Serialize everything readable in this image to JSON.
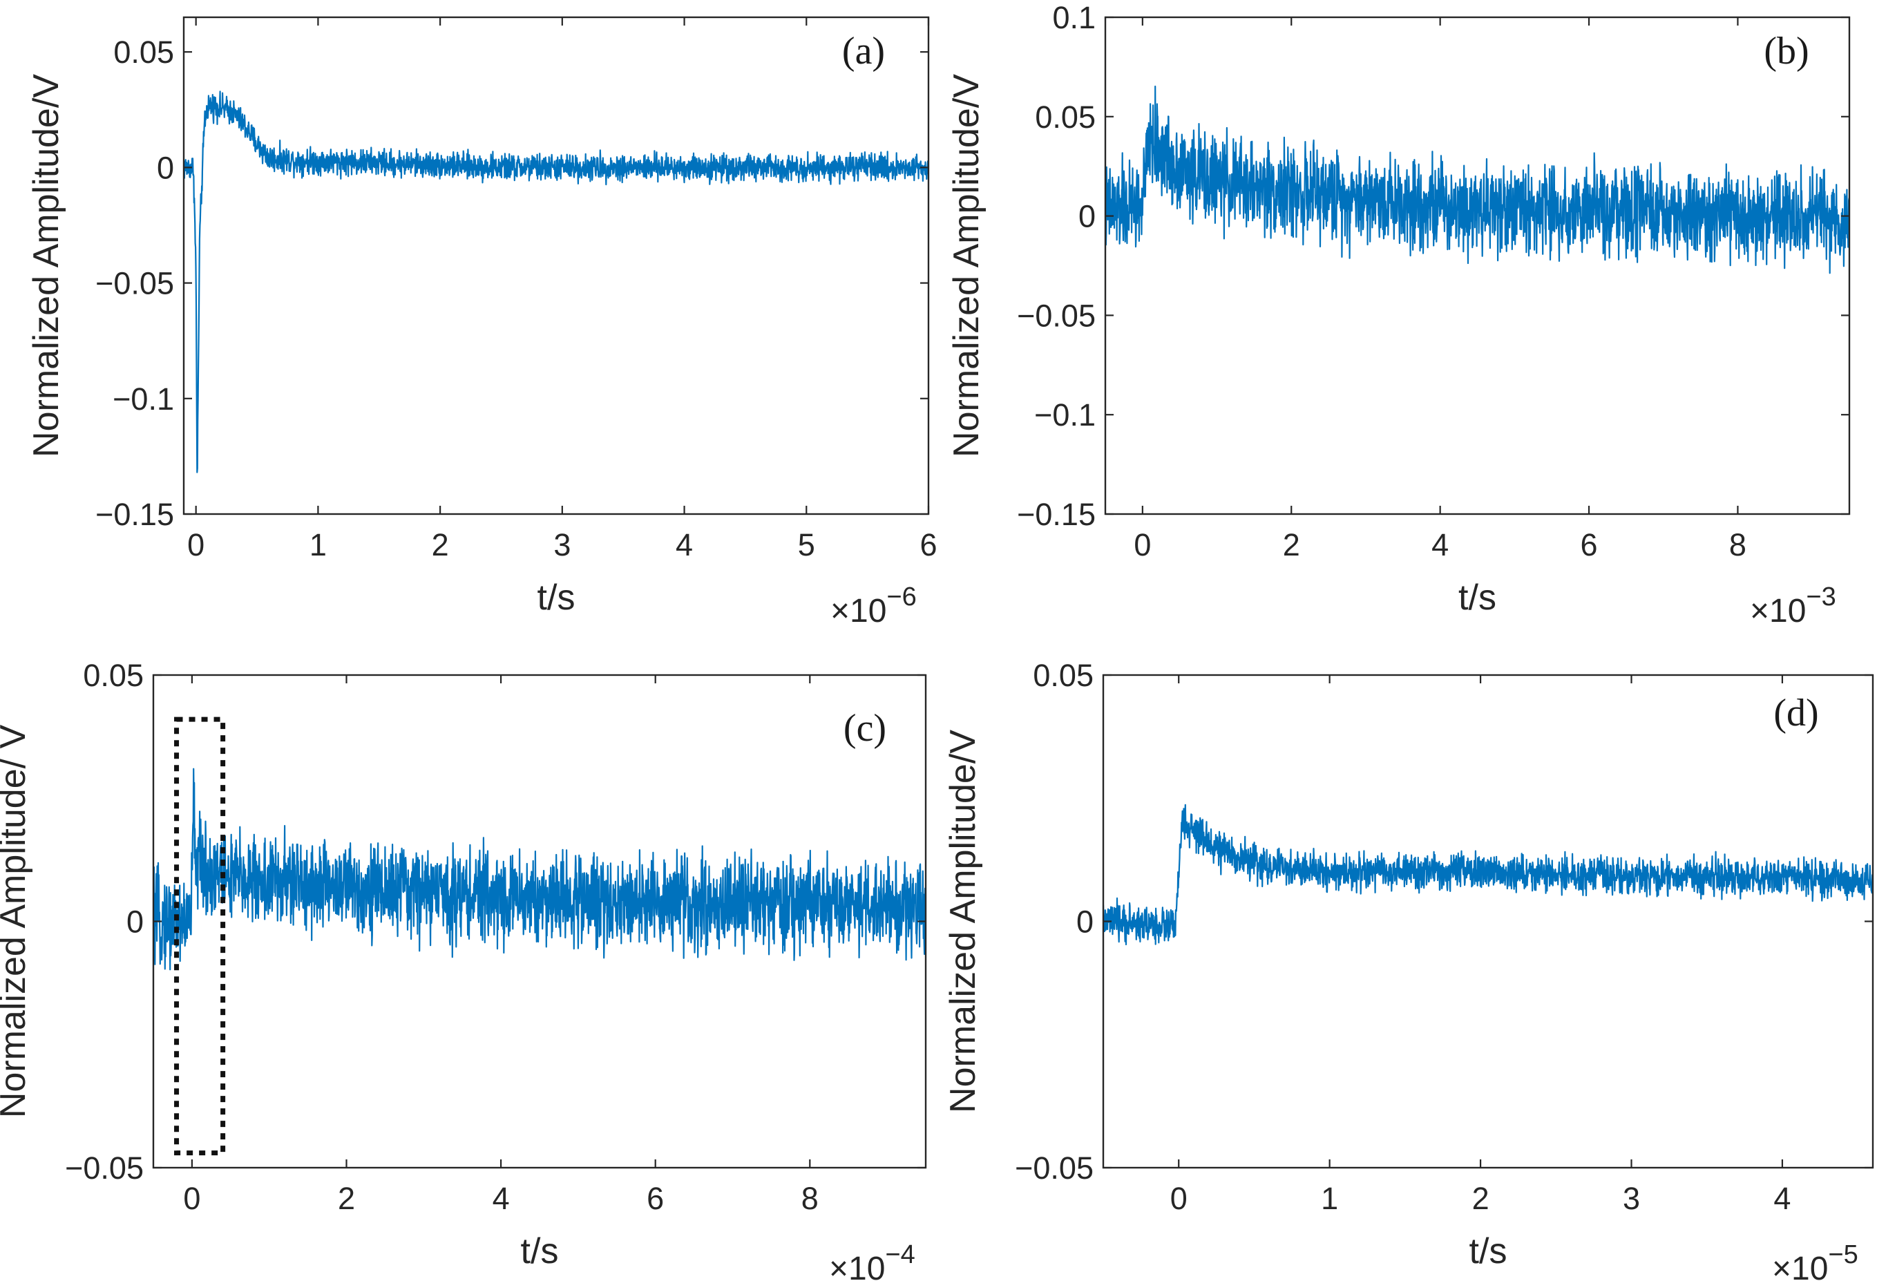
{
  "chart_data": [
    {
      "id": "a",
      "type": "line",
      "panel_label": "(a)",
      "xlabel": "t/s",
      "ylabel": "Normalized Amplitude/V",
      "x_multiplier": {
        "base": "×10",
        "exponent": "−6"
      },
      "xlim": [
        -0.1,
        6.0
      ],
      "ylim": [
        -0.15,
        0.065
      ],
      "xticks": [
        0,
        1,
        2,
        3,
        4,
        5,
        6
      ],
      "xtick_labels": [
        "0",
        "1",
        "2",
        "3",
        "4",
        "5",
        "6"
      ],
      "yticks": [
        0.05,
        0,
        -0.05,
        -0.1,
        -0.15
      ],
      "ytick_labels": [
        "0.05",
        "0",
        "−0.05",
        "−0.1",
        "−0.15"
      ],
      "series": [
        {
          "name": "signal",
          "color": "#0072BD",
          "noise": 0.0028,
          "trace_points": [
            [
              -0.1,
              0
            ],
            [
              -0.02,
              0
            ],
            [
              0,
              -0.045
            ],
            [
              0.01,
              -0.138
            ],
            [
              0.03,
              -0.03
            ],
            [
              0.07,
              0.02
            ],
            [
              0.1,
              0.027
            ],
            [
              0.2,
              0.026
            ],
            [
              0.3,
              0.024
            ],
            [
              0.4,
              0.018
            ],
            [
              0.5,
              0.01
            ],
            [
              0.6,
              0.004
            ],
            [
              0.8,
              0.003
            ],
            [
              1.5,
              0.002
            ],
            [
              2.5,
              0
            ],
            [
              4,
              0
            ],
            [
              6,
              0
            ]
          ]
        }
      ]
    },
    {
      "id": "b",
      "type": "line",
      "panel_label": "(b)",
      "xlabel": "t/s",
      "ylabel": "Normalized Amplitude/V",
      "x_multiplier": {
        "base": "×10",
        "exponent": "−3"
      },
      "xlim": [
        -0.5,
        9.5
      ],
      "ylim": [
        -0.15,
        0.1
      ],
      "xticks": [
        0,
        2,
        4,
        6,
        8
      ],
      "xtick_labels": [
        "0",
        "2",
        "4",
        "6",
        "8"
      ],
      "yticks": [
        0.1,
        0.05,
        0,
        -0.05,
        -0.1,
        -0.15
      ],
      "ytick_labels": [
        "0.1",
        "0.05",
        "0",
        "−0.05",
        "−0.1",
        "−0.15"
      ],
      "series": [
        {
          "name": "signal",
          "color": "#0072BD",
          "noise": 0.011,
          "trace_points": [
            [
              -0.5,
              0.003
            ],
            [
              -0.02,
              0.005
            ],
            [
              0,
              0.008
            ],
            [
              0.1,
              0.038
            ],
            [
              0.3,
              0.03
            ],
            [
              0.6,
              0.022
            ],
            [
              1,
              0.018
            ],
            [
              2,
              0.012
            ],
            [
              4,
              0.006
            ],
            [
              6,
              0.002
            ],
            [
              8,
              -0.001
            ],
            [
              9.5,
              -0.002
            ]
          ]
        }
      ]
    },
    {
      "id": "c",
      "type": "line",
      "panel_label": "(c)",
      "xlabel": "t/s",
      "ylabel": "Normalized Amplitude/ V",
      "x_multiplier": {
        "base": "×10",
        "exponent": "−4"
      },
      "xlim": [
        -0.5,
        9.5
      ],
      "ylim": [
        -0.05,
        0.05
      ],
      "xticks": [
        0,
        2,
        4,
        6,
        8
      ],
      "xtick_labels": [
        "0",
        "2",
        "4",
        "6",
        "8"
      ],
      "yticks": [
        0.05,
        0,
        -0.05
      ],
      "ytick_labels": [
        "0.05",
        "0",
        "−0.05"
      ],
      "inset_region": {
        "x": [
          -0.2,
          0.4
        ],
        "y": [
          -0.047,
          0.041
        ]
      },
      "series": [
        {
          "name": "signal",
          "color": "#0072BD",
          "noise": 0.0045,
          "trace_points": [
            [
              -0.5,
              0
            ],
            [
              -0.02,
              0
            ],
            [
              0,
              0.008
            ],
            [
              0.02,
              0.024
            ],
            [
              0.05,
              0.013
            ],
            [
              0.2,
              0.01
            ],
            [
              0.5,
              0.009
            ],
            [
              1,
              0.008
            ],
            [
              2,
              0.007
            ],
            [
              4,
              0.005
            ],
            [
              6,
              0.004
            ],
            [
              8,
              0.003
            ],
            [
              9.5,
              0.003
            ]
          ]
        }
      ]
    },
    {
      "id": "d",
      "type": "line",
      "panel_label": "(d)",
      "xlabel": "t/s",
      "ylabel": "Normalized Amplitude/V",
      "x_multiplier": {
        "base": "×10",
        "exponent": "−5"
      },
      "xlim": [
        -0.5,
        4.6
      ],
      "ylim": [
        -0.05,
        0.05
      ],
      "xticks": [
        0,
        1,
        2,
        3,
        4
      ],
      "xtick_labels": [
        "0",
        "1",
        "2",
        "3",
        "4"
      ],
      "yticks": [
        0.05,
        0,
        -0.05
      ],
      "ytick_labels": [
        "0.05",
        "0",
        "−0.05"
      ],
      "series": [
        {
          "name": "signal",
          "color": "#0072BD",
          "noise": 0.0018,
          "trace_points": [
            [
              -0.5,
              0
            ],
            [
              -0.02,
              -0.001
            ],
            [
              0.02,
              0.02
            ],
            [
              0.1,
              0.018
            ],
            [
              0.3,
              0.014
            ],
            [
              0.6,
              0.011
            ],
            [
              1,
              0.01
            ],
            [
              2,
              0.01
            ],
            [
              3,
              0.009
            ],
            [
              4,
              0.009
            ],
            [
              4.6,
              0.008
            ]
          ]
        }
      ]
    }
  ]
}
